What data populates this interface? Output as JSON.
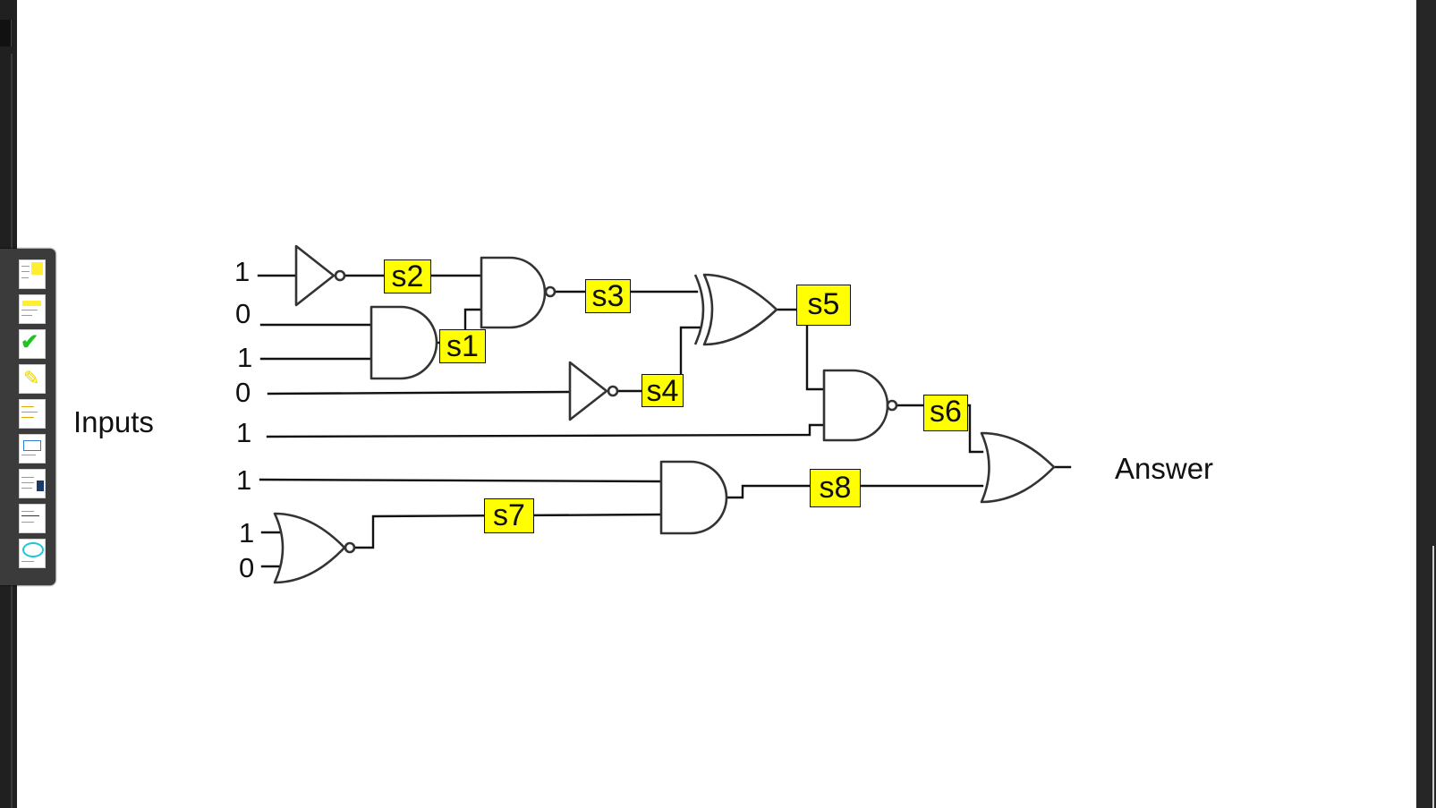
{
  "inputs_label": "Inputs",
  "answer_label": "Answer",
  "input_values": [
    "1",
    "0",
    "1",
    "0",
    "1",
    "1",
    "1",
    "0"
  ],
  "signals": {
    "s1": "s1",
    "s2": "s2",
    "s3": "s3",
    "s4": "s4",
    "s5": "s5",
    "s6": "s6",
    "s7": "s7",
    "s8": "s8"
  },
  "gates": [
    {
      "name": "NOT",
      "input": "input 1",
      "output": "s2"
    },
    {
      "name": "AND",
      "inputs": [
        "input 2",
        "input 3"
      ],
      "output": "s1"
    },
    {
      "name": "NAND",
      "inputs": [
        "s2",
        "s1"
      ],
      "output": "s3"
    },
    {
      "name": "NOT",
      "input": "input 4",
      "output": "s4"
    },
    {
      "name": "XOR",
      "inputs": [
        "s3",
        "s4"
      ],
      "output": "s5"
    },
    {
      "name": "NAND",
      "inputs": [
        "s5",
        "input 5"
      ],
      "output": "s6"
    },
    {
      "name": "NOR",
      "inputs": [
        "input 7",
        "input 8"
      ],
      "output": "s7"
    },
    {
      "name": "AND",
      "inputs": [
        "input 6",
        "s7"
      ],
      "output": "s8"
    },
    {
      "name": "OR",
      "inputs": [
        "s6",
        "s8"
      ],
      "output": "Answer"
    }
  ],
  "colors": {
    "signal_highlight": "#ffff00",
    "wire": "#111111",
    "gate_stroke": "#333333"
  }
}
